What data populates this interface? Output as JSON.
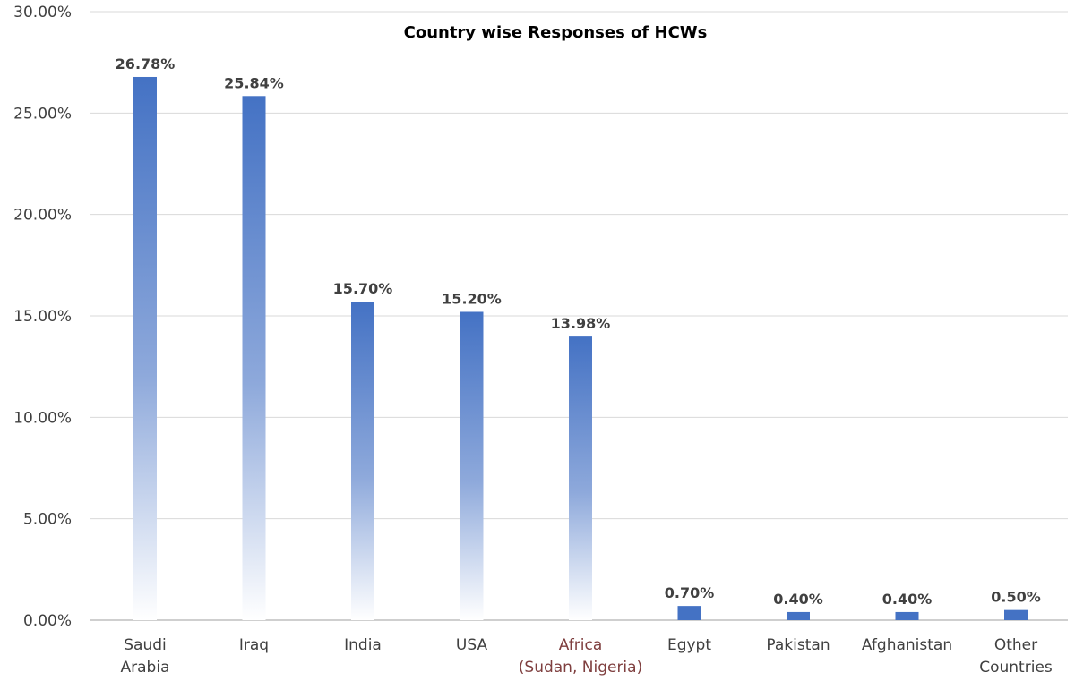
{
  "chart_data": {
    "type": "bar",
    "title": "Country wise Responses of HCWs",
    "xlabel": "",
    "ylabel": "",
    "categories": [
      [
        "Saudi",
        "Arabia"
      ],
      [
        "Iraq"
      ],
      [
        "India"
      ],
      [
        "USA"
      ],
      [
        "Africa",
        "(Sudan, Nigeria)"
      ],
      [
        "Egypt"
      ],
      [
        "Pakistan"
      ],
      [
        "Afghanistan"
      ],
      [
        "Other",
        "Countries"
      ]
    ],
    "values": [
      26.78,
      25.84,
      15.7,
      15.2,
      13.98,
      0.7,
      0.4,
      0.4,
      0.5
    ],
    "value_labels": [
      "26.78%",
      "25.84%",
      "15.70%",
      "15.20%",
      "13.98%",
      "0.70%",
      "0.40%",
      "0.40%",
      "0.50%"
    ],
    "ylim": [
      0,
      30
    ],
    "yticks": [
      0,
      5,
      10,
      15,
      20,
      25,
      30
    ],
    "ytick_labels": [
      "0.00%",
      "5.00%",
      "10.00%",
      "15.00%",
      "20.00%",
      "25.00%",
      "30.00%"
    ],
    "grid": true,
    "legend": "none",
    "colors": {
      "bar_top": "#4472C4",
      "bar_mid": "#8EA9DB",
      "bar_bottom": "#FFFFFF",
      "grid": "#D9D9D9",
      "axis": "#BFBFBF",
      "africa_label": "#7F3F3F"
    }
  }
}
